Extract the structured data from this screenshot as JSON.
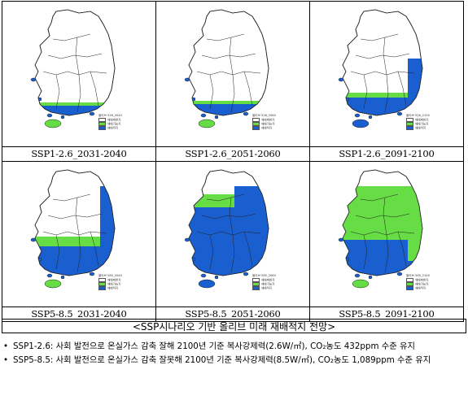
{
  "panels": [
    {
      "caption": "SSP1-2.6_2031-2040",
      "legend_title": "올리브 526_2040",
      "legend_items": [
        "재배제한지",
        "재배가능지",
        "재배적지"
      ],
      "scenario": "low",
      "stage": 1
    },
    {
      "caption": "SSP1-2.6_2051-2060",
      "legend_title": "올리브 526_2060",
      "legend_items": [
        "재배제한지",
        "재배가능지",
        "재배적지"
      ],
      "scenario": "low",
      "stage": 2
    },
    {
      "caption": "SSP1-2.6_2091-2100",
      "legend_title": "올리브 526_2100",
      "legend_items": [
        "재배제한지",
        "재배가능지",
        "재배적지"
      ],
      "scenario": "low",
      "stage": 3
    },
    {
      "caption": "SSP5-8.5_2031-2040",
      "legend_title": "올리브 585_2040",
      "legend_items": [
        "재배제한지",
        "재배가능지",
        "재배적지"
      ],
      "scenario": "high",
      "stage": 1
    },
    {
      "caption": "SSP5-8.5_2051-2060",
      "legend_title": "올리브 585_2060",
      "legend_items": [
        "재배제한지",
        "재배가능지",
        "재배적지"
      ],
      "scenario": "high",
      "stage": 2
    },
    {
      "caption": "SSP5-8.5_2091-2100",
      "legend_title": "올리브 585_2100",
      "legend_items": [
        "재배제한지",
        "재배가능지",
        "재배적지"
      ],
      "scenario": "high",
      "stage": 3
    }
  ],
  "colors": {
    "restricted": "#ffffff",
    "possible": "#66dd44",
    "suitable": "#1a5fd0",
    "border": "#222222"
  },
  "figure_title": "<SSP시나리오 기반 올리브 미래 재배적지 전망>",
  "notes": [
    {
      "bullet": "•",
      "text": "SSP1-2.6: 사회 발전으로 온실가스 감축 잘해 2100년 기준 복사강제력(2.6W/㎡), CO₂농도 432ppm 수준 유지"
    },
    {
      "bullet": "•",
      "text": "SSP5-8.5: 사회 발전으로 온실가스 감축 잘못해 2100년 기준 복사강제력(8.5W/㎡), CO₂농도 1,089ppm 수준 유지"
    }
  ]
}
